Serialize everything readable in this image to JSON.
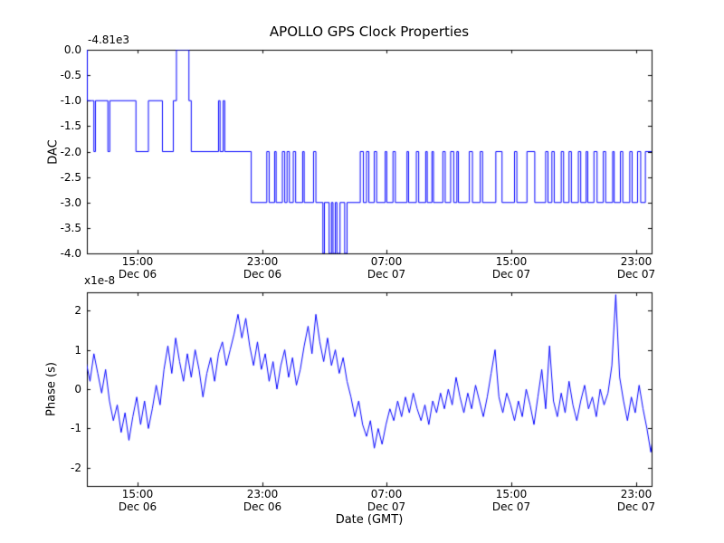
{
  "figure": {
    "title": "APOLLO GPS Clock Properties",
    "background": "#ffffff",
    "line_color": "#0000ff",
    "axes_color": "#000000"
  },
  "chart_data": [
    {
      "type": "line",
      "line_style": "step-post",
      "ylabel": "DAC",
      "offset_text": "-4.81e3",
      "ylim": [
        -4.0,
        0.0
      ],
      "xlim_hours": [
        11.75,
        48.0
      ],
      "ytick_labels": [
        "0.0",
        "-0.5",
        "-1.0",
        "-1.5",
        "-2.0",
        "-2.5",
        "-3.0",
        "-3.5",
        "-4.0"
      ],
      "ytick_values": [
        0.0,
        -0.5,
        -1.0,
        -1.5,
        -2.0,
        -2.5,
        -3.0,
        -3.5,
        -4.0
      ],
      "xticks": [
        {
          "hour": 15,
          "time": "15:00",
          "date": "Dec 06"
        },
        {
          "hour": 23,
          "time": "23:00",
          "date": "Dec 06"
        },
        {
          "hour": 31,
          "time": "07:00",
          "date": "Dec 07"
        },
        {
          "hour": 39,
          "time": "15:00",
          "date": "Dec 07"
        },
        {
          "hour": 47,
          "time": "23:00",
          "date": "Dec 07"
        }
      ],
      "points": [
        [
          11.7,
          0
        ],
        [
          11.78,
          -1
        ],
        [
          12.2,
          -2
        ],
        [
          12.3,
          -1
        ],
        [
          13.1,
          -2
        ],
        [
          13.22,
          -1
        ],
        [
          14.9,
          -2
        ],
        [
          15.7,
          -1
        ],
        [
          16.6,
          -2
        ],
        [
          17.3,
          -1
        ],
        [
          17.5,
          0
        ],
        [
          18.3,
          -1
        ],
        [
          18.45,
          -2
        ],
        [
          20.2,
          -1
        ],
        [
          20.3,
          -2
        ],
        [
          20.5,
          -1
        ],
        [
          20.6,
          -2
        ],
        [
          22.3,
          -3
        ],
        [
          23.3,
          -2
        ],
        [
          23.45,
          -3
        ],
        [
          23.8,
          -2
        ],
        [
          23.9,
          -3
        ],
        [
          24.3,
          -2
        ],
        [
          24.45,
          -3
        ],
        [
          24.6,
          -2
        ],
        [
          24.75,
          -3
        ],
        [
          25.0,
          -2
        ],
        [
          25.15,
          -3
        ],
        [
          25.6,
          -2
        ],
        [
          25.7,
          -3
        ],
        [
          26.3,
          -2
        ],
        [
          26.45,
          -3
        ],
        [
          26.9,
          -4
        ],
        [
          27.0,
          -3
        ],
        [
          27.3,
          -4
        ],
        [
          27.45,
          -3
        ],
        [
          27.55,
          -4
        ],
        [
          27.7,
          -3
        ],
        [
          27.8,
          -4
        ],
        [
          28.0,
          -3
        ],
        [
          28.3,
          -4
        ],
        [
          28.45,
          -3
        ],
        [
          29.3,
          -2
        ],
        [
          29.5,
          -3
        ],
        [
          29.7,
          -2
        ],
        [
          29.85,
          -3
        ],
        [
          30.2,
          -2
        ],
        [
          30.35,
          -3
        ],
        [
          30.9,
          -2
        ],
        [
          31.0,
          -3
        ],
        [
          31.4,
          -2
        ],
        [
          31.55,
          -3
        ],
        [
          32.3,
          -2
        ],
        [
          32.4,
          -3
        ],
        [
          32.9,
          -2
        ],
        [
          33.05,
          -3
        ],
        [
          33.5,
          -2
        ],
        [
          33.6,
          -3
        ],
        [
          33.9,
          -2
        ],
        [
          34.0,
          -3
        ],
        [
          34.6,
          -2
        ],
        [
          34.75,
          -3
        ],
        [
          35.1,
          -2
        ],
        [
          35.3,
          -3
        ],
        [
          35.5,
          -2
        ],
        [
          35.6,
          -3
        ],
        [
          36.3,
          -2
        ],
        [
          36.5,
          -3
        ],
        [
          37.0,
          -2
        ],
        [
          37.15,
          -3
        ],
        [
          38.0,
          -2
        ],
        [
          38.4,
          -3
        ],
        [
          39.2,
          -2
        ],
        [
          39.35,
          -3
        ],
        [
          40.0,
          -2
        ],
        [
          40.5,
          -3
        ],
        [
          41.2,
          -2
        ],
        [
          41.35,
          -3
        ],
        [
          41.6,
          -2
        ],
        [
          41.75,
          -3
        ],
        [
          42.2,
          -2
        ],
        [
          42.35,
          -3
        ],
        [
          42.7,
          -2
        ],
        [
          42.85,
          -3
        ],
        [
          43.3,
          -2
        ],
        [
          43.45,
          -3
        ],
        [
          43.8,
          -2
        ],
        [
          43.9,
          -3
        ],
        [
          44.3,
          -2
        ],
        [
          44.5,
          -3
        ],
        [
          44.9,
          -2
        ],
        [
          45.05,
          -3
        ],
        [
          45.5,
          -2
        ],
        [
          45.6,
          -3
        ],
        [
          46.0,
          -2
        ],
        [
          46.15,
          -3
        ],
        [
          46.6,
          -2
        ],
        [
          46.75,
          -3
        ],
        [
          47.1,
          -2
        ],
        [
          47.3,
          -3
        ],
        [
          47.6,
          -2
        ],
        [
          48.0,
          -2
        ]
      ]
    },
    {
      "type": "line",
      "ylabel": "Phase (s)",
      "scale_text": "x1e-8",
      "xlabel": "Date (GMT)",
      "ylim": [
        -2.46,
        2.46
      ],
      "xlim_hours": [
        11.75,
        48.0
      ],
      "ytick_labels": [
        "2",
        "1",
        "0",
        "-1",
        "-2"
      ],
      "ytick_values": [
        2,
        1,
        0,
        -1,
        -2
      ],
      "xticks": [
        {
          "hour": 15,
          "time": "15:00",
          "date": "Dec 06"
        },
        {
          "hour": 23,
          "time": "23:00",
          "date": "Dec 06"
        },
        {
          "hour": 31,
          "time": "07:00",
          "date": "Dec 07"
        },
        {
          "hour": 39,
          "time": "15:00",
          "date": "Dec 07"
        },
        {
          "hour": 47,
          "time": "23:00",
          "date": "Dec 07"
        }
      ],
      "series": {
        "t0": 11.7,
        "dt": 0.25,
        "values": [
          0.7,
          0.2,
          0.9,
          0.4,
          -0.1,
          0.5,
          -0.3,
          -0.8,
          -0.4,
          -1.1,
          -0.6,
          -1.3,
          -0.7,
          -0.2,
          -0.9,
          -0.3,
          -1.0,
          -0.5,
          0.1,
          -0.4,
          0.5,
          1.1,
          0.4,
          1.3,
          0.7,
          0.2,
          0.9,
          0.3,
          1.0,
          0.5,
          -0.2,
          0.4,
          0.8,
          0.2,
          0.9,
          1.2,
          0.6,
          1.0,
          1.4,
          1.9,
          1.3,
          1.8,
          1.1,
          0.6,
          1.2,
          0.5,
          0.9,
          0.2,
          0.7,
          0.0,
          0.6,
          1.0,
          0.3,
          0.8,
          0.1,
          0.5,
          1.1,
          1.6,
          0.9,
          1.9,
          1.2,
          0.7,
          1.3,
          0.6,
          1.0,
          0.4,
          0.8,
          0.2,
          -0.2,
          -0.7,
          -0.3,
          -0.9,
          -1.2,
          -0.8,
          -1.5,
          -1.0,
          -1.4,
          -0.9,
          -0.5,
          -0.8,
          -0.3,
          -0.7,
          -0.2,
          -0.6,
          -0.1,
          -0.5,
          -0.8,
          -0.4,
          -0.9,
          -0.3,
          -0.6,
          -0.1,
          -0.5,
          0.0,
          -0.4,
          0.3,
          -0.2,
          -0.6,
          -0.1,
          -0.5,
          0.1,
          -0.3,
          -0.7,
          -0.2,
          0.4,
          1.0,
          -0.2,
          -0.6,
          -0.1,
          -0.4,
          -0.8,
          -0.3,
          -0.7,
          0.0,
          -0.4,
          -0.9,
          -0.2,
          0.5,
          -0.5,
          1.1,
          -0.3,
          -0.7,
          -0.1,
          -0.6,
          0.2,
          -0.4,
          -0.8,
          -0.3,
          0.1,
          -0.5,
          -0.2,
          -0.7,
          0.0,
          -0.4,
          -0.1,
          0.6,
          2.4,
          0.3,
          -0.3,
          -0.8,
          -0.2,
          -0.6,
          0.1,
          -0.5,
          -1.0,
          -1.6,
          -0.9
        ]
      }
    }
  ]
}
